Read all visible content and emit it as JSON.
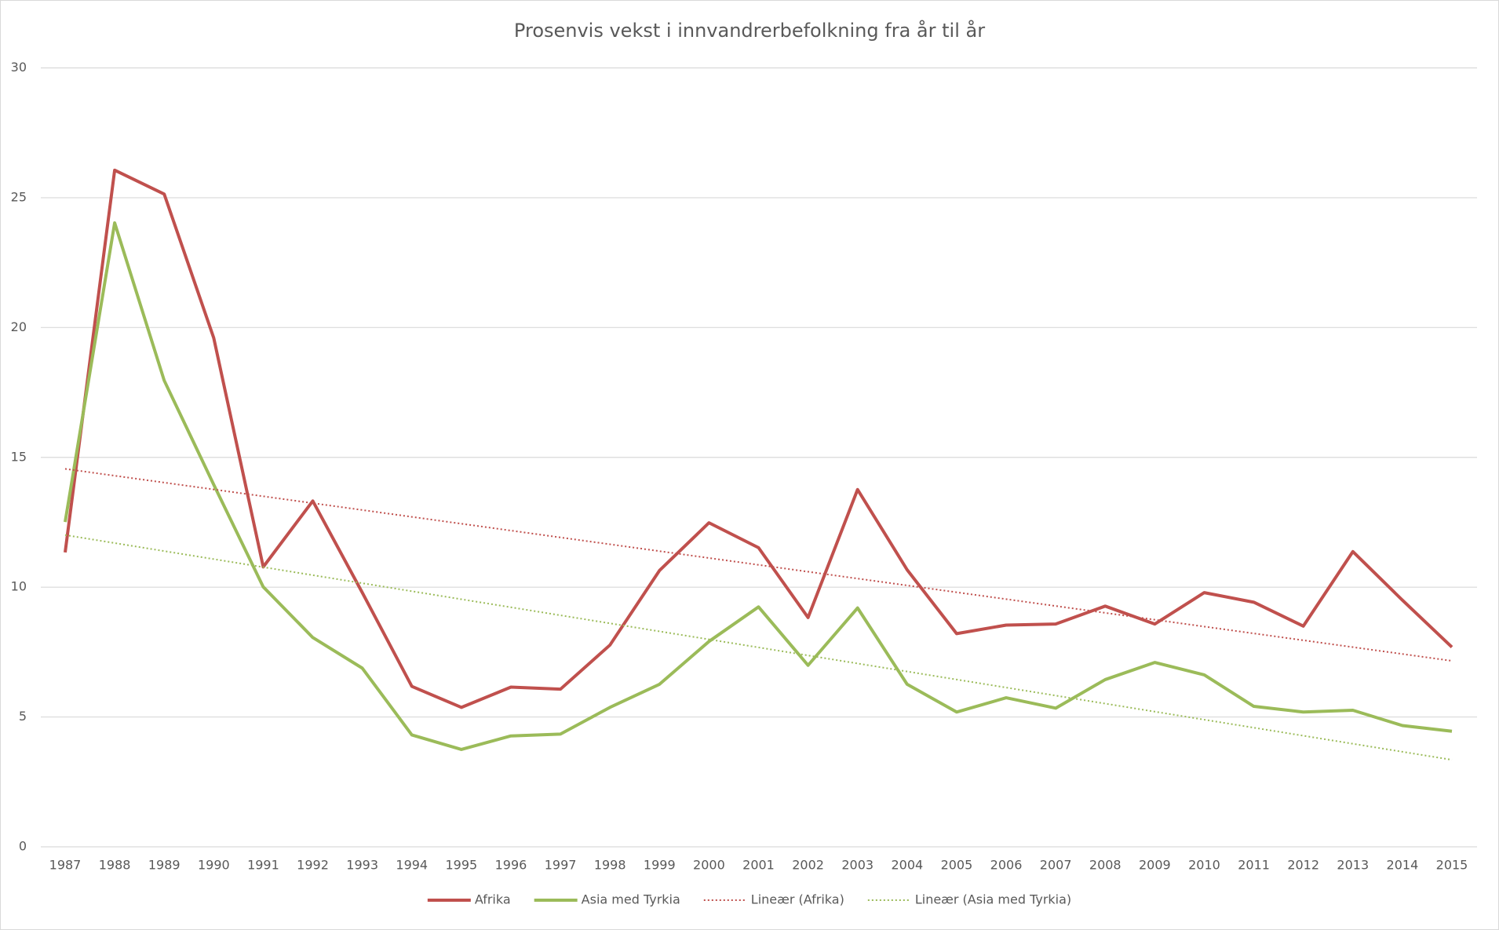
{
  "chart_data": {
    "type": "line",
    "title": "Prosenvis vekst i innvandrerbefolkning fra år til år",
    "categories": [
      "1987",
      "1988",
      "1989",
      "1990",
      "1991",
      "1992",
      "1993",
      "1994",
      "1995",
      "1996",
      "1997",
      "1998",
      "1999",
      "2000",
      "2001",
      "2002",
      "2003",
      "2004",
      "2005",
      "2006",
      "2007",
      "2008",
      "2009",
      "2010",
      "2011",
      "2012",
      "2013",
      "2014",
      "2015"
    ],
    "series": [
      {
        "name": "Afrika",
        "color": "#c0504d",
        "values": [
          11.34,
          26.06,
          25.14,
          19.6,
          10.78,
          13.32,
          9.79,
          6.18,
          5.37,
          6.15,
          6.07,
          7.77,
          10.64,
          12.48,
          11.52,
          8.83,
          13.76,
          10.67,
          8.21,
          8.54,
          8.58,
          9.27,
          8.58,
          9.79,
          9.42,
          8.5,
          11.37,
          9.5,
          7.69
        ],
        "trendline": {
          "type": "linear",
          "name": "Lineær  (Afrika)"
        }
      },
      {
        "name": "Asia med Tyrkia",
        "color": "#9bbb59",
        "values": [
          12.51,
          24.03,
          17.96,
          13.95,
          10.01,
          8.06,
          6.88,
          4.31,
          3.75,
          4.27,
          4.34,
          5.37,
          6.26,
          7.91,
          9.24,
          6.99,
          9.2,
          6.26,
          5.19,
          5.74,
          5.34,
          6.44,
          7.1,
          6.62,
          5.41,
          5.19,
          5.26,
          4.67,
          4.45
        ],
        "trendline": {
          "type": "linear",
          "name": "Lineær  (Asia med Tyrkia)"
        }
      }
    ],
    "ylim": [
      0,
      30
    ],
    "yticks": [
      0,
      5,
      10,
      15,
      20,
      25,
      30
    ],
    "grid": true,
    "legend": "bottom"
  }
}
